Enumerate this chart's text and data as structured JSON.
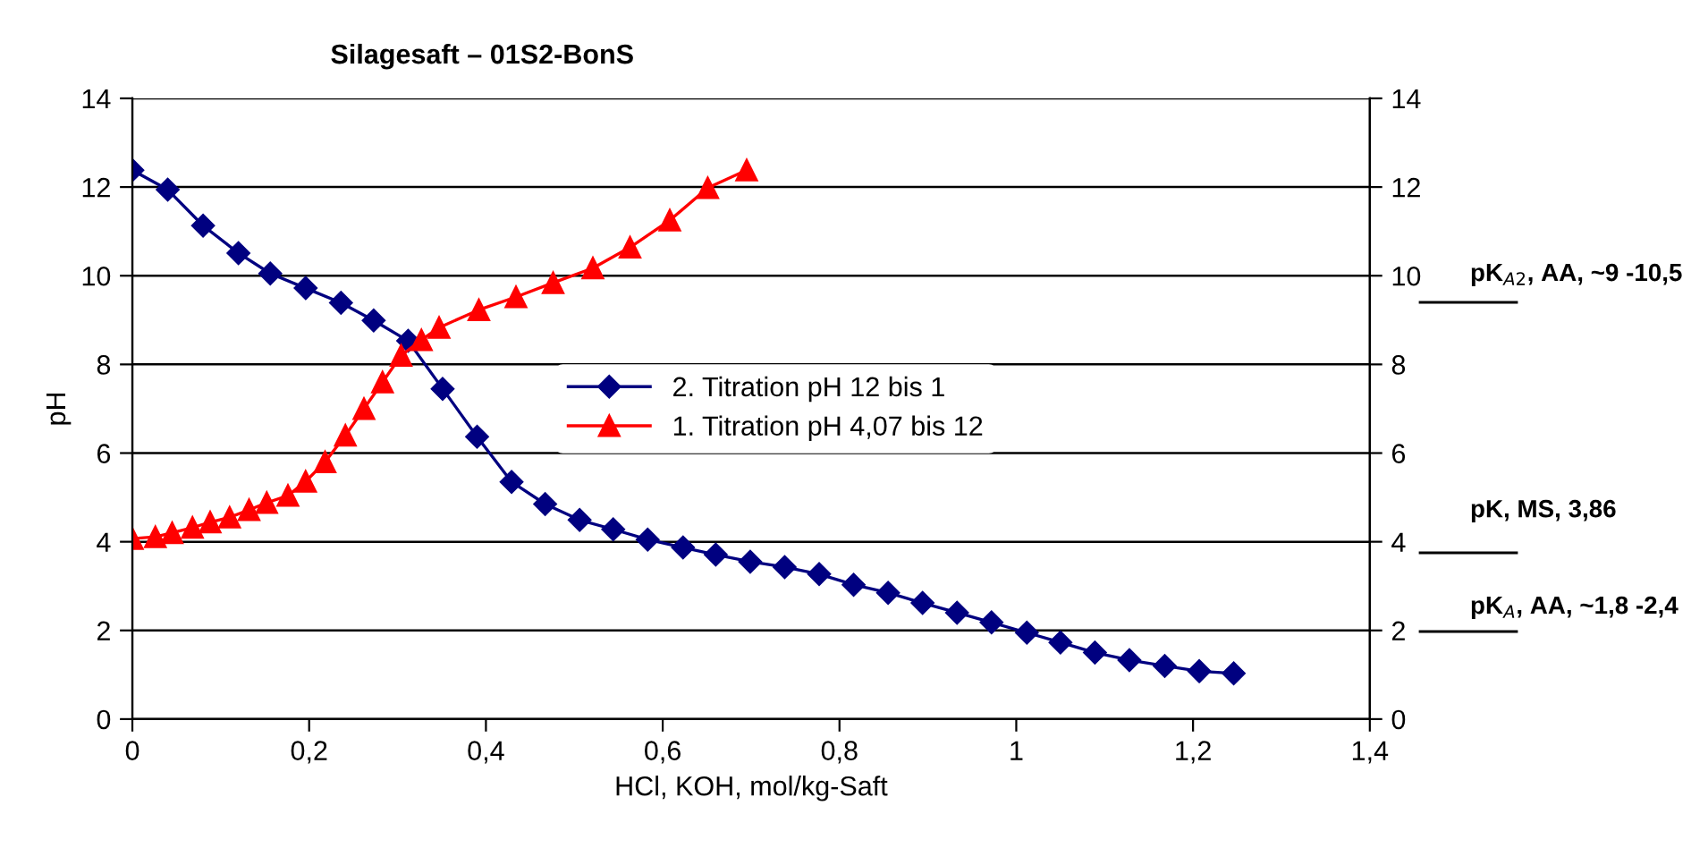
{
  "chart_data": {
    "type": "line",
    "title": "Silagesaft – 01S2-BonS",
    "xlabel": "HCl, KOH, mol/kg-Saft",
    "ylabel": "pH",
    "xlim": [
      0,
      1.4
    ],
    "xticks": [
      0,
      {
        "value": 0.2,
        "label": "0,2"
      },
      {
        "value": 0.4,
        "label": "0,4"
      },
      {
        "value": 0.6,
        "label": "0,6"
      },
      {
        "value": 0.8,
        "label": "0,8"
      },
      1,
      {
        "value": 1.2,
        "label": "1,2"
      },
      {
        "value": 1.4,
        "label": "1,4"
      }
    ],
    "ylim": [
      0,
      14
    ],
    "yticks": [
      0,
      2,
      4,
      6,
      8,
      10,
      12,
      14
    ],
    "y2lim": [
      0,
      14
    ],
    "y2ticks": [
      0,
      2,
      4,
      6,
      8,
      10,
      12,
      14
    ],
    "grid": "y",
    "legend": "center",
    "line_style": "solid",
    "series": [
      {
        "name": "2. Titration pH 12 bis 1",
        "color": "#000080",
        "marker": "diamond",
        "x": [
          0,
          0.04,
          0.08,
          0.12,
          0.156,
          0.196,
          0.236,
          0.273,
          0.312,
          0.351,
          0.39,
          0.429,
          0.467,
          0.506,
          0.544,
          0.583,
          0.623,
          0.66,
          0.699,
          0.738,
          0.777,
          0.816,
          0.855,
          0.894,
          0.933,
          0.972,
          1.012,
          1.05,
          1.089,
          1.128,
          1.168,
          1.207,
          1.246
        ],
        "values": [
          12.38,
          11.94,
          11.13,
          10.51,
          10.05,
          9.72,
          9.39,
          8.99,
          8.53,
          7.45,
          6.37,
          5.35,
          4.85,
          4.49,
          4.28,
          4.05,
          3.87,
          3.71,
          3.55,
          3.43,
          3.27,
          3.03,
          2.85,
          2.62,
          2.4,
          2.18,
          1.95,
          1.73,
          1.5,
          1.33,
          1.2,
          1.08,
          1.03
        ]
      },
      {
        "name": "1. Titration pH 4,07 bis 12",
        "color": "#ff0000",
        "marker": "triangle",
        "x": [
          0,
          0.026,
          0.045,
          0.068,
          0.088,
          0.11,
          0.132,
          0.152,
          0.176,
          0.196,
          0.218,
          0.241,
          0.262,
          0.283,
          0.304,
          0.327,
          0.347,
          0.392,
          0.434,
          0.476,
          0.521,
          0.563,
          0.608,
          0.651,
          0.695
        ],
        "values": [
          4.07,
          4.11,
          4.2,
          4.32,
          4.44,
          4.55,
          4.72,
          4.88,
          5.04,
          5.36,
          5.8,
          6.4,
          7.0,
          7.6,
          8.2,
          8.55,
          8.83,
          9.23,
          9.52,
          9.84,
          10.17,
          10.64,
          11.25,
          11.98,
          12.38
        ]
      }
    ],
    "annotations": [
      "pK$_{A2}$, AA, ~9 -10,5",
      "pK, MS, 3,86",
      "pK$_{A}$, AA, ~1,8 -2,4"
    ]
  }
}
